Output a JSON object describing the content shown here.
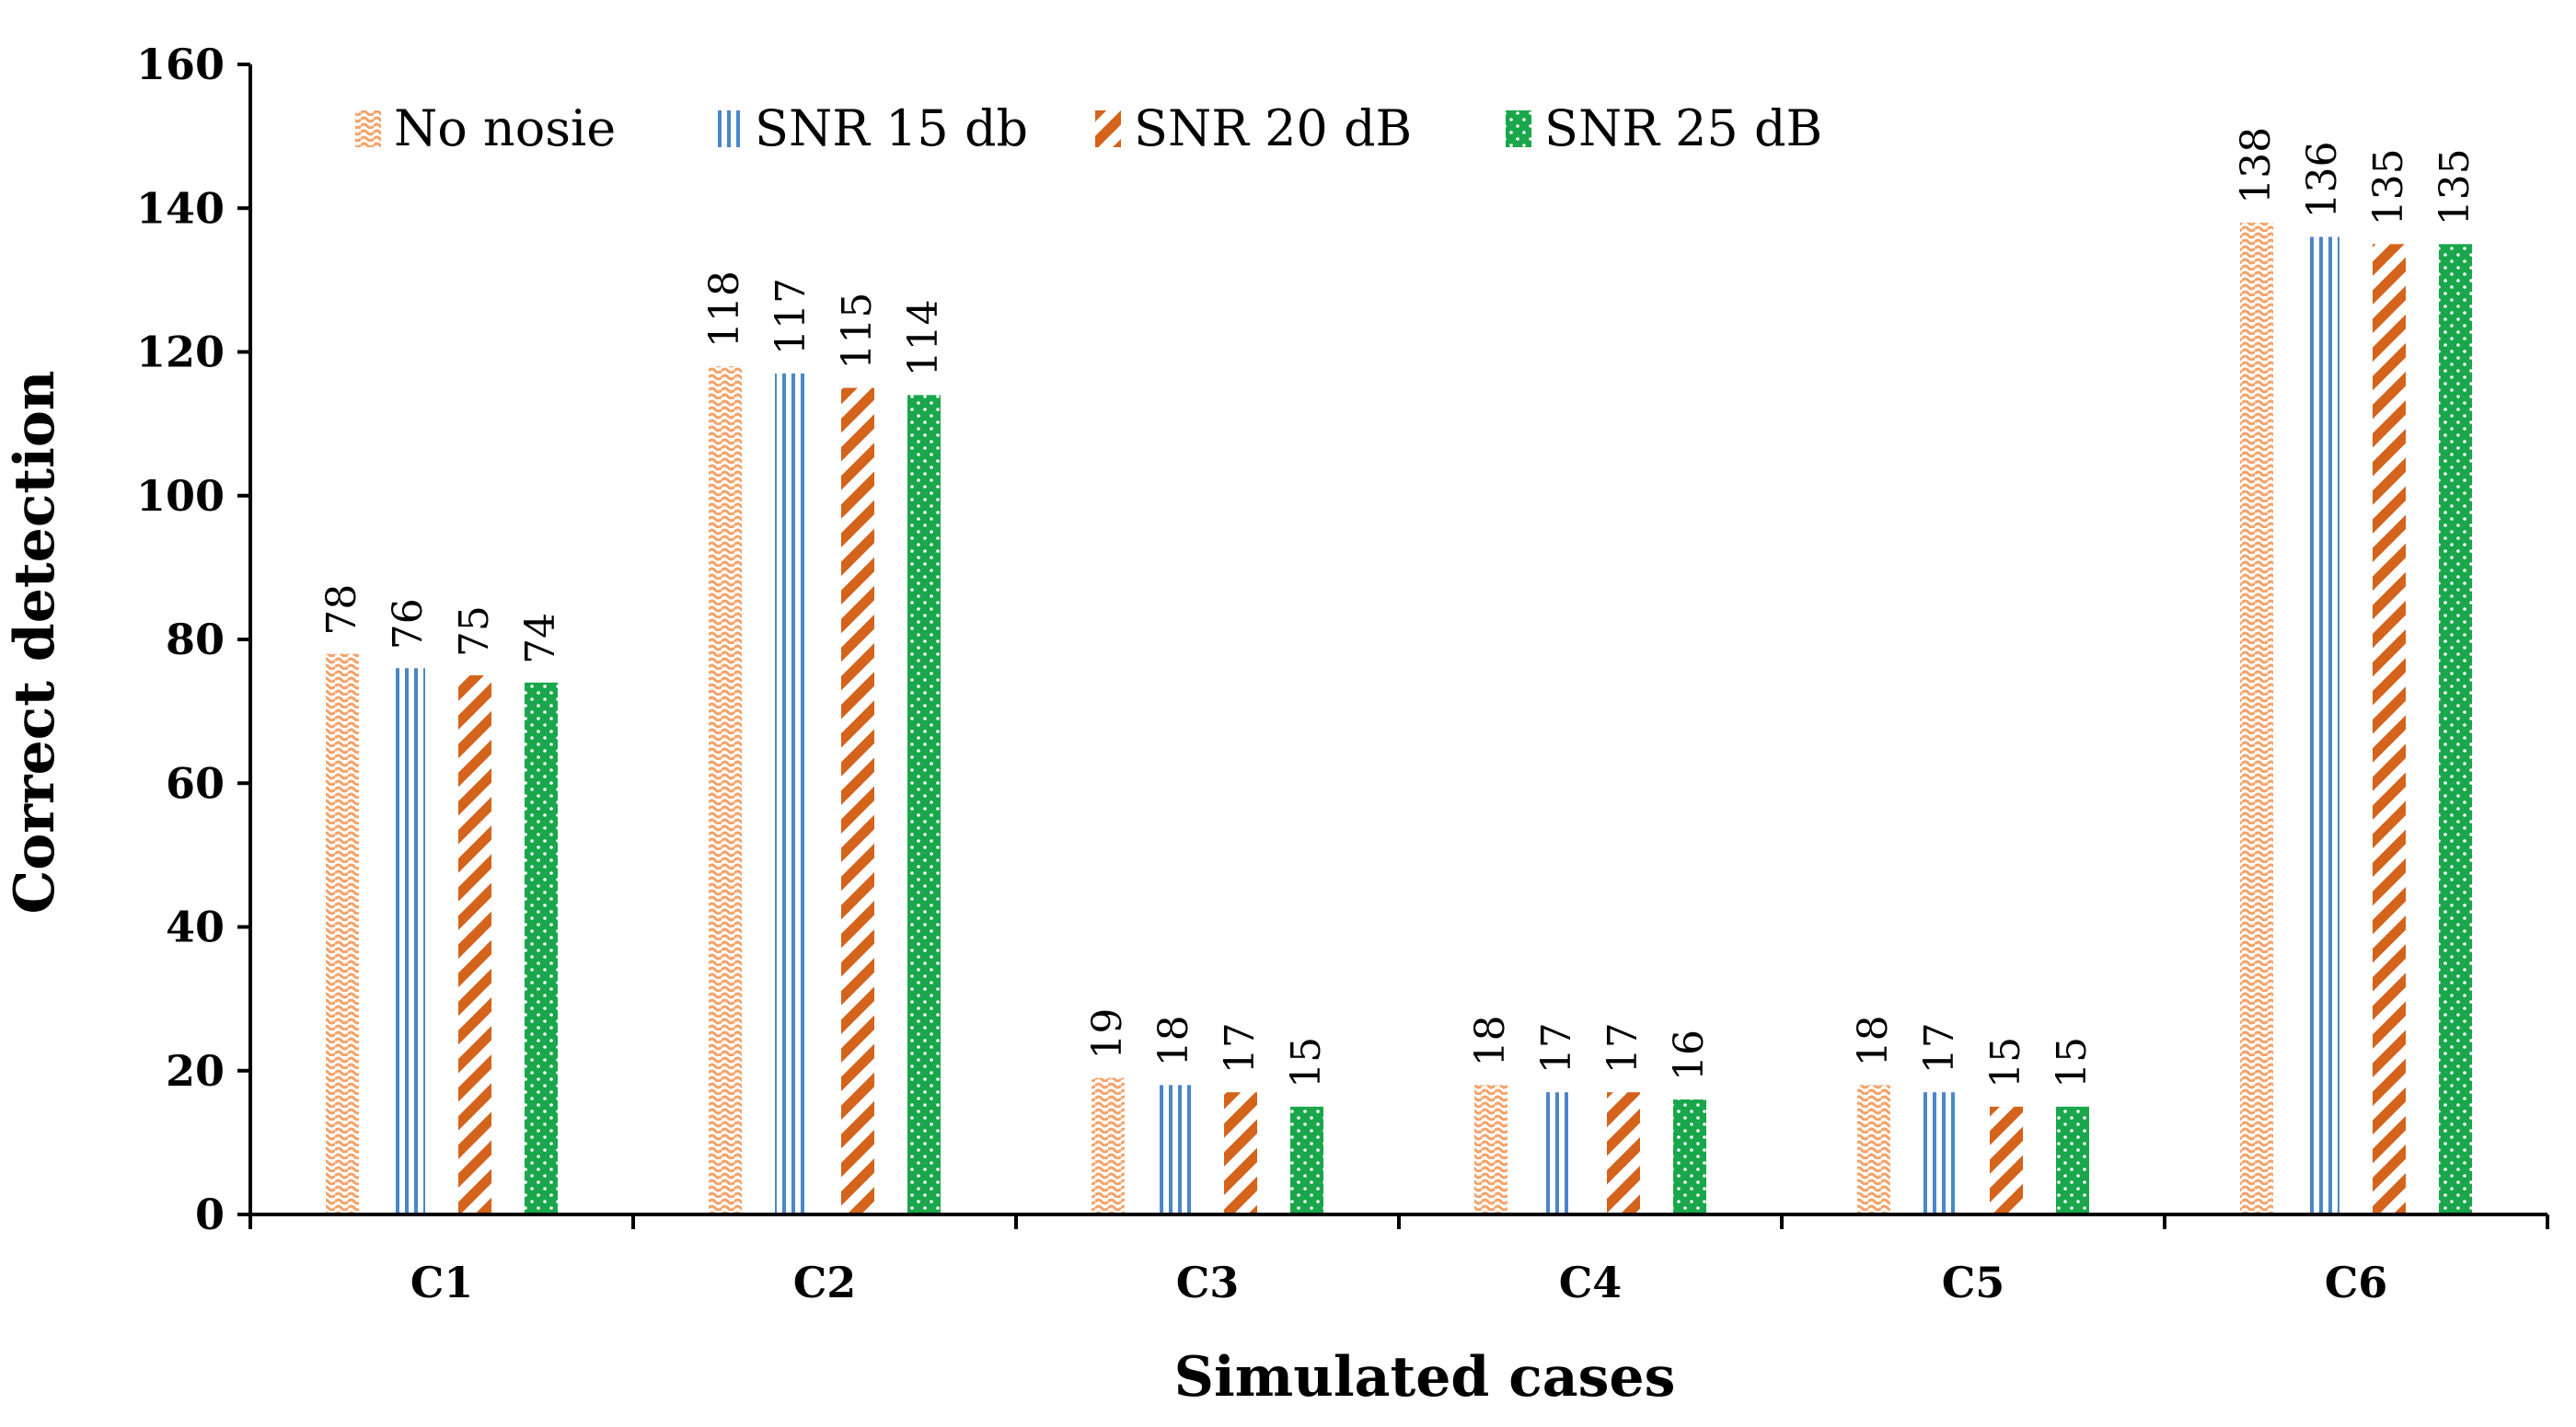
{
  "chart_data": {
    "type": "bar",
    "title": "",
    "xlabel": "Simulated cases",
    "ylabel": "Correct detection",
    "categories": [
      "C1",
      "C2",
      "C3",
      "C4",
      "C5",
      "C6"
    ],
    "ylim": [
      0,
      160
    ],
    "yticks": [
      "0",
      "20",
      "40",
      "60",
      "80",
      "100",
      "120",
      "140",
      "160"
    ],
    "grid": false,
    "legend_position": "top-left",
    "series": [
      {
        "name": "No nosie",
        "values": [
          78,
          118,
          19,
          18,
          18,
          138
        ],
        "color": "#f4a268",
        "pattern": "wave"
      },
      {
        "name": "SNR 15 db",
        "values": [
          76,
          117,
          18,
          17,
          17,
          136
        ],
        "color": "#4a86c8",
        "pattern": "vertical"
      },
      {
        "name": "SNR 20 dB",
        "values": [
          75,
          115,
          17,
          17,
          15,
          135
        ],
        "color": "#d4631c",
        "pattern": "diagonal"
      },
      {
        "name": "SNR 25 dB",
        "values": [
          74,
          114,
          15,
          16,
          15,
          135
        ],
        "color": "#1aa64b",
        "pattern": "dots"
      }
    ]
  }
}
